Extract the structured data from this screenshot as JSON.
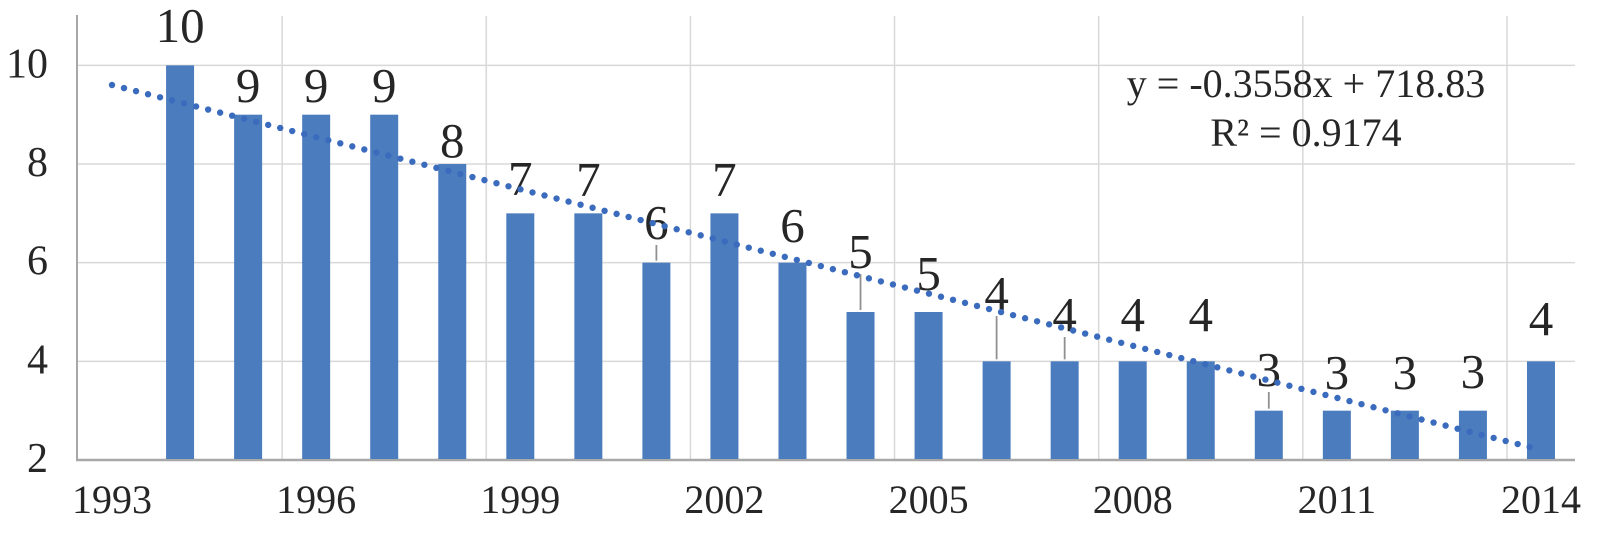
{
  "chart_data": {
    "type": "bar",
    "title": "",
    "xlabel": "",
    "ylabel": "",
    "categories": [
      1993,
      1994,
      1995,
      1996,
      1997,
      1998,
      1999,
      2000,
      2001,
      2002,
      2003,
      2004,
      2005,
      2006,
      2007,
      2008,
      2009,
      2010,
      2011,
      2012,
      2013,
      2014
    ],
    "values": [
      null,
      10,
      9,
      9,
      9,
      8,
      7,
      7,
      6,
      7,
      6,
      5,
      5,
      4,
      4,
      4,
      4,
      3,
      3,
      3,
      3,
      4
    ],
    "data_labels": [
      "",
      "10",
      "9",
      "9",
      "9",
      "8",
      "7",
      "7",
      "6",
      "7",
      "6",
      "5",
      "5",
      "4",
      "4",
      "4",
      "4",
      "3",
      "3",
      "3",
      "3",
      "4"
    ],
    "label_leader_years": [
      2001,
      2004,
      2006,
      2007,
      2010
    ],
    "ylim": [
      2,
      11
    ],
    "y_ticks": [
      "2",
      "4",
      "6",
      "8",
      "10"
    ],
    "x_tick_labels": [
      "1993",
      "1996",
      "1999",
      "2002",
      "2005",
      "2008",
      "2011",
      "2014"
    ],
    "x_tick_interval": 3,
    "grid": "on",
    "legend": "none",
    "trendline": {
      "type": "linear",
      "style": "dotted",
      "equation": "y = -0.3558x + 718.83",
      "r2": "R² = 0.9174"
    }
  },
  "colors": {
    "bar": "#4B7DBE",
    "trendline": "#3A6BBD",
    "gridline": "#D8D8D8",
    "axis": "#A8A8A8",
    "text": "#262626",
    "leader": "#909090",
    "background": "#FFFFFF"
  }
}
